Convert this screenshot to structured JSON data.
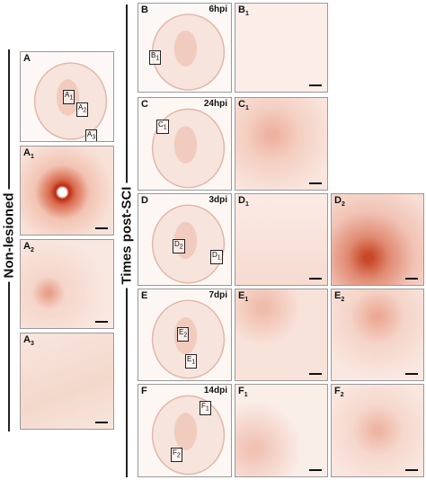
{
  "left_label": "Non-lesioned",
  "right_label": "Times post-SCI",
  "panels": [
    {
      "label": "A",
      "boxes": [
        {
          "label": "A",
          "sub": "1"
        },
        {
          "label": "A",
          "sub": "2"
        },
        {
          "label": "A",
          "sub": "3"
        }
      ]
    },
    {
      "label": "A",
      "sub": "1"
    },
    {
      "label": "A",
      "sub": "2"
    },
    {
      "label": "A",
      "sub": "3"
    },
    {
      "label": "B",
      "time": "6hpi",
      "boxes": [
        {
          "label": "B",
          "sub": "1"
        }
      ]
    },
    {
      "label": "B",
      "sub": "1"
    },
    {
      "label": "C",
      "time": "24hpi",
      "boxes": [
        {
          "label": "C",
          "sub": "1"
        }
      ]
    },
    {
      "label": "C",
      "sub": "1"
    },
    {
      "label": "D",
      "time": "3dpi",
      "boxes": [
        {
          "label": "D",
          "sub": "2"
        },
        {
          "label": "D",
          "sub": "1"
        }
      ]
    },
    {
      "label": "D",
      "sub": "1"
    },
    {
      "label": "D",
      "sub": "2"
    },
    {
      "label": "E",
      "time": "7dpi",
      "boxes": [
        {
          "label": "E",
          "sub": "2"
        },
        {
          "label": "E",
          "sub": "1"
        }
      ]
    },
    {
      "label": "E",
      "sub": "1"
    },
    {
      "label": "E",
      "sub": "2"
    },
    {
      "label": "F",
      "time": "14dpi",
      "boxes": [
        {
          "label": "F",
          "sub": "1"
        },
        {
          "label": "F",
          "sub": "2"
        }
      ]
    },
    {
      "label": "F",
      "sub": "1"
    },
    {
      "label": "F",
      "sub": "2"
    }
  ]
}
